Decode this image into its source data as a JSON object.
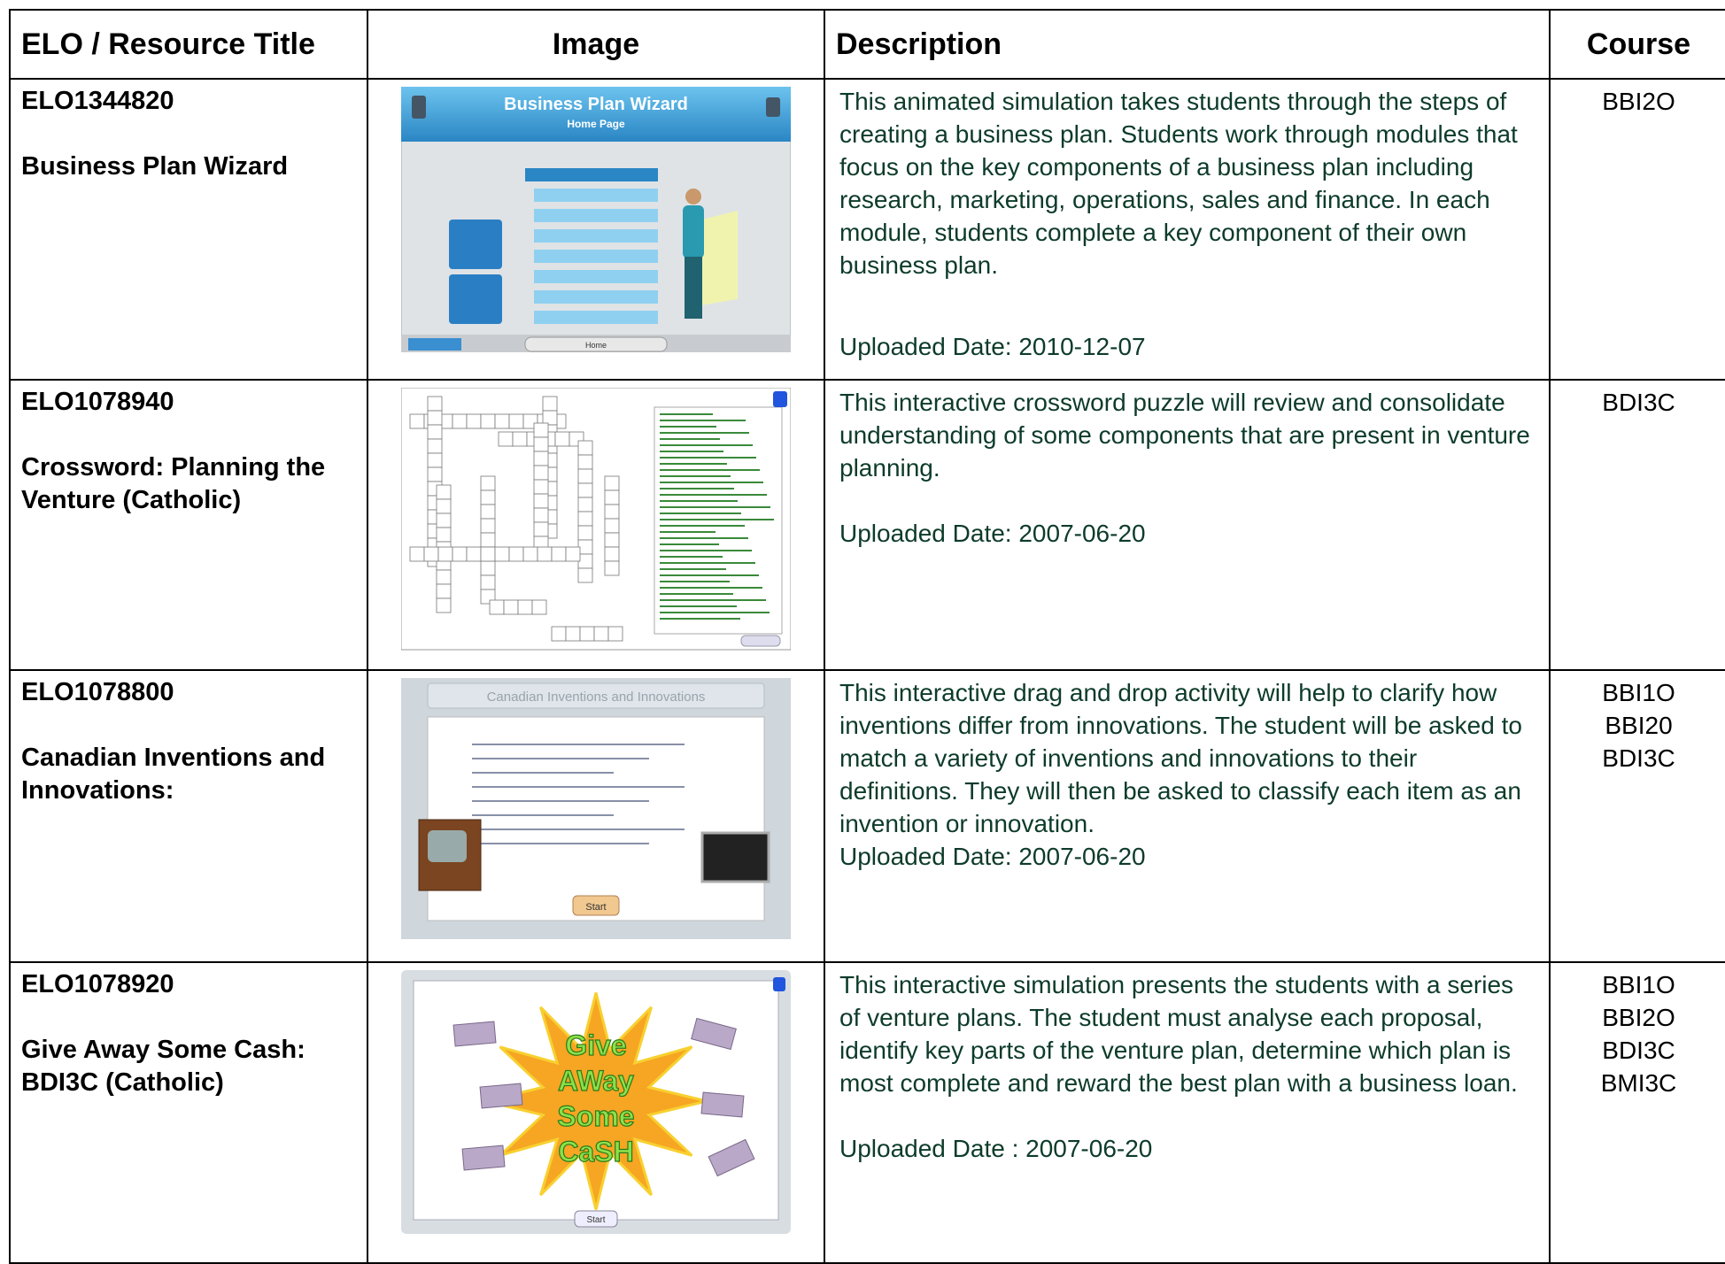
{
  "table": {
    "headers": [
      "ELO / Resource Title",
      "Image",
      "Description",
      "Course"
    ],
    "rows": [
      {
        "elo": "ELO1344820",
        "title": "Business Plan Wizard",
        "image": {
          "title": "Business Plan Wizard",
          "subtitle": "Home Page",
          "button": "Home"
        },
        "description": "This animated simulation takes students through the steps of creating a business plan. Students work through modules that focus on the key components of a business plan including research, marketing, operations, sales and finance. In each module, students complete a key component of their own business plan.",
        "uploaded": "Uploaded Date:  2010-12-07",
        "courses": [
          "BBI2O"
        ]
      },
      {
        "elo": "ELO1078940",
        "title": "Crossword: Planning the Venture (Catholic)",
        "description": "This interactive crossword puzzle will review and consolidate understanding of some components that are present in venture planning.",
        "uploaded": "Uploaded Date: 2007-06-20",
        "courses": [
          "BDI3C"
        ]
      },
      {
        "elo": "ELO1078800",
        "title": "Canadian Inventions and Innovations:",
        "image": {
          "title": "Canadian Inventions and Innovations",
          "button": "Start"
        },
        "description": "This interactive drag and drop activity will help to clarify how inventions differ from innovations. The student will be asked to match a variety of inventions and innovations to their definitions. They will then be asked to classify each item as an invention or innovation.",
        "uploaded": "Uploaded Date: 2007-06-20",
        "courses": [
          "BBI1O",
          "BBI20",
          "BDI3C"
        ]
      },
      {
        "elo": "ELO1078920",
        "title": "Give Away Some Cash: BDI3C (Catholic)",
        "image": {
          "title_lines": [
            "Give",
            "AWay",
            "Some",
            "CaSH"
          ],
          "button": "Start"
        },
        "description": "This interactive simulation presents the students with a series of venture plans. The student must analyse each proposal, identify key parts of the venture plan, determine which plan is most complete and reward the best plan with a business loan.",
        "uploaded": "Uploaded Date : 2007-06-20",
        "courses": [
          "BBI1O",
          "BBI2O",
          "BDI3C",
          "BMI3C"
        ]
      }
    ]
  }
}
